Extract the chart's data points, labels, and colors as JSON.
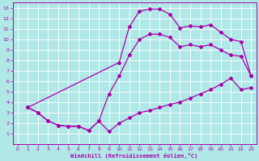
{
  "bg_color": "#b0e8e8",
  "line_color": "#aa00aa",
  "grid_color": "#ffffff",
  "xlabel": "Windchill (Refroidissement éolien,°C)",
  "xlim": [
    -0.5,
    23.5
  ],
  "ylim": [
    0,
    13.5
  ],
  "xticks": [
    0,
    1,
    2,
    3,
    4,
    5,
    6,
    7,
    8,
    9,
    10,
    11,
    12,
    13,
    14,
    15,
    16,
    17,
    18,
    19,
    20,
    21,
    22,
    23
  ],
  "yticks": [
    1,
    2,
    3,
    4,
    5,
    6,
    7,
    8,
    9,
    10,
    11,
    12,
    13
  ],
  "line1_x": [
    1,
    2,
    3,
    4,
    5,
    6,
    7,
    8,
    9,
    10,
    11,
    12,
    13,
    14,
    15,
    16,
    17,
    18,
    19,
    20,
    21,
    22,
    23
  ],
  "line1_y": [
    3.5,
    3.0,
    2.2,
    1.8,
    1.7,
    1.7,
    1.3,
    2.2,
    1.2,
    2.0,
    2.5,
    3.0,
    3.2,
    3.5,
    3.8,
    4.0,
    4.4,
    4.8,
    5.2,
    5.7,
    6.3,
    5.2,
    5.4
  ],
  "line2_x": [
    1,
    2,
    3,
    4,
    5,
    6,
    7,
    8,
    9,
    10,
    11,
    12,
    13,
    14,
    15,
    16,
    17,
    18,
    19,
    20,
    21,
    22,
    23
  ],
  "line2_y": [
    3.5,
    3.0,
    2.2,
    1.8,
    1.7,
    1.7,
    1.3,
    2.2,
    4.8,
    6.5,
    8.5,
    10.0,
    10.5,
    10.5,
    10.2,
    9.3,
    9.5,
    9.3,
    9.5,
    9.0,
    8.5,
    8.4,
    6.5
  ],
  "line3_x": [
    1,
    10,
    11,
    12,
    13,
    14,
    15,
    16,
    17,
    18,
    19,
    20,
    21,
    22,
    23
  ],
  "line3_y": [
    3.5,
    7.8,
    11.2,
    12.7,
    12.9,
    12.9,
    12.4,
    11.1,
    11.3,
    11.2,
    11.4,
    10.7,
    10.0,
    9.8,
    6.5
  ],
  "marker": "D",
  "markersize": 2.0,
  "linewidth": 0.9
}
